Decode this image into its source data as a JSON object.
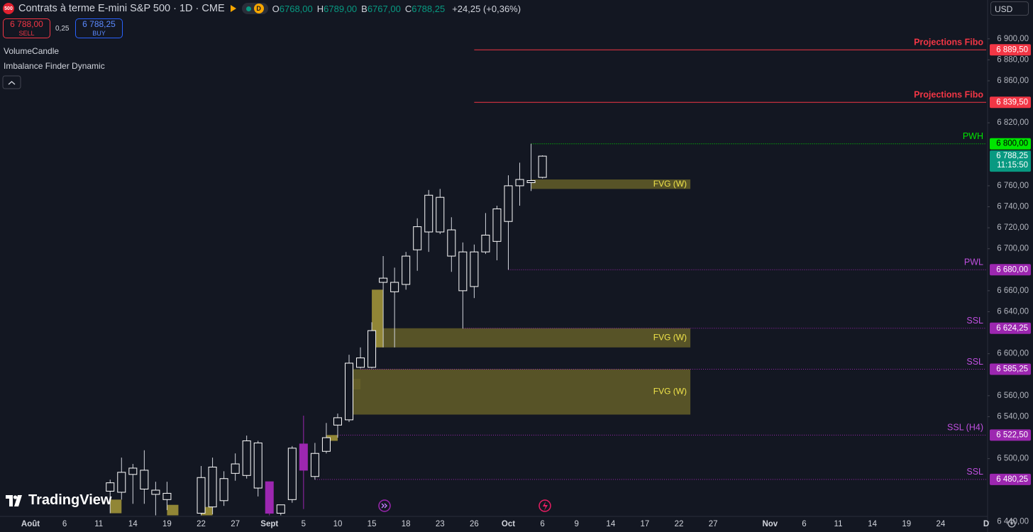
{
  "header": {
    "symbol_icon": "500",
    "title": "Contrats à terme E-mini S&P 500 · 1D · CME",
    "status": "D",
    "ohlc": [
      {
        "key": "O",
        "value": "6768,00"
      },
      {
        "key": "H",
        "value": "6789,00"
      },
      {
        "key": "B",
        "value": "6767,00"
      },
      {
        "key": "C",
        "value": "6788,25"
      }
    ],
    "change": "+24,25 (+0,36%)",
    "currency": "USD"
  },
  "trade": {
    "sell_price": "6 788,00",
    "sell": "SELL",
    "spread": "0,25",
    "buy_price": "6 788,25",
    "buy": "BUY"
  },
  "indicators": [
    "VolumeCandle",
    "Imbalance Finder Dynamic"
  ],
  "watermark": "TradingView",
  "chart_data": {
    "type": "candlestick",
    "categories": [
      "Août",
      null,
      null,
      "6",
      null,
      null,
      "11",
      null,
      null,
      "14",
      null,
      null,
      "19",
      null,
      null,
      "22",
      null,
      null,
      "27",
      null,
      null,
      "Sept",
      null,
      null,
      "5",
      null,
      null,
      "10",
      null,
      null,
      "15",
      null,
      null,
      "18",
      null,
      null,
      "23",
      null,
      null,
      "26",
      null,
      null,
      "Oct",
      null,
      null,
      "6",
      null,
      null,
      "9",
      null,
      null,
      "14",
      null,
      null,
      "17",
      null,
      null,
      "22",
      null,
      null,
      "27",
      null,
      null,
      null,
      null,
      "Nov",
      null,
      null,
      "6",
      null,
      null,
      "11",
      null,
      null,
      "14",
      null,
      null,
      "19",
      null,
      null,
      "24",
      null,
      null,
      null,
      "D"
    ],
    "open": [
      null,
      null,
      null,
      null,
      null,
      null,
      null,
      6469,
      6468,
      6485,
      6489,
      6466,
      6461,
      null,
      null,
      6448,
      6454,
      6460,
      6486,
      6484,
      6515,
      6478,
      6448,
      6461,
      6514,
      6483,
      6507,
      6532,
      6537,
      6596,
      6587,
      6668,
      6659,
      6666,
      6699,
      6716,
      6749,
      6718,
      6697,
      6664,
      6697,
      6707,
      6726,
      6760,
      6763,
      6768,
      null,
      null,
      null,
      null,
      null,
      null,
      null,
      null,
      null,
      null,
      null,
      null,
      null,
      null,
      null,
      null,
      null,
      null,
      null,
      null,
      null,
      null,
      null,
      null,
      null,
      null,
      null,
      null,
      null,
      null,
      null,
      null,
      null,
      null,
      null,
      null,
      null,
      null,
      null
    ],
    "high": [
      null,
      null,
      null,
      null,
      null,
      null,
      null,
      6480,
      6501,
      6495,
      6508,
      6478,
      6478,
      null,
      null,
      6493,
      6501,
      6488,
      6505,
      6522,
      6517,
      6478,
      6456,
      6512,
      6541,
      6515,
      6534,
      6543,
      6599,
      6606,
      6630,
      6693,
      6682,
      6697,
      6729,
      6756,
      6757,
      6730,
      6706,
      6704,
      6734,
      6741,
      6770,
      6782,
      6800,
      6789,
      null,
      null,
      null,
      null,
      null,
      null,
      null,
      null,
      null,
      null,
      null,
      null,
      null,
      null,
      null,
      null,
      null,
      null,
      null,
      null,
      null,
      null,
      null,
      null,
      null,
      null,
      null,
      null,
      null,
      null,
      null,
      null,
      null,
      null,
      null,
      null,
      null,
      null,
      null
    ],
    "low": [
      null,
      null,
      null,
      null,
      null,
      null,
      null,
      6448,
      6461,
      6457,
      6457,
      6446,
      6451,
      null,
      null,
      6446,
      6447,
      6455,
      6479,
      6481,
      6464,
      6446,
      6446,
      6458,
      6452,
      6480,
      6505,
      6520,
      6535,
      6586,
      6586,
      6606,
      6606,
      6661,
      6679,
      6697,
      6714,
      6678,
      6624,
      6653,
      6695,
      6689,
      6680,
      6741,
      6755,
      6767,
      null,
      null,
      null,
      null,
      null,
      null,
      null,
      null,
      null,
      null,
      null,
      null,
      null,
      null,
      null,
      null,
      null,
      null,
      null,
      null,
      null,
      null,
      null,
      null,
      null,
      null,
      null,
      null,
      null,
      null,
      null,
      null,
      null,
      null,
      null,
      null,
      null,
      null,
      null
    ],
    "close": [
      null,
      null,
      null,
      null,
      null,
      null,
      null,
      6477,
      6487,
      6491,
      6471,
      6470,
      6467,
      null,
      null,
      6482,
      6492,
      6481,
      6495,
      6517,
      6472,
      6448,
      6456,
      6510,
      6489,
      6505,
      6520,
      6539,
      6591,
      6587,
      6622,
      6672,
      6668,
      6693,
      6721,
      6751,
      6716,
      6693,
      6660,
      6697,
      6713,
      6738,
      6760,
      6766,
      6765,
      6788.25,
      null,
      null,
      null,
      null,
      null,
      null,
      null,
      null,
      null,
      null,
      null,
      null,
      null,
      null,
      null,
      null,
      null,
      null,
      null,
      null,
      null,
      null,
      null,
      null,
      null,
      null,
      null,
      null,
      null,
      null,
      null,
      null,
      null,
      null,
      null,
      null,
      null,
      null,
      null
    ],
    "body_color": "#131722",
    "border_color": "#ffffff",
    "wick_color": "#d1d4dc",
    "volume_candles": [
      21,
      24
    ],
    "volume_color": "#9c27b0",
    "ylim": [
      6445,
      6937
    ],
    "yticks": [
      {
        "value": 6900,
        "label": "6 900,00"
      },
      {
        "value": 6880,
        "label": "6 880,00"
      },
      {
        "value": 6860,
        "label": "6 860,00"
      },
      {
        "value": 6820,
        "label": "6 820,00"
      },
      {
        "value": 6760,
        "label": "6 760,00"
      },
      {
        "value": 6740,
        "label": "6 740,00"
      },
      {
        "value": 6720,
        "label": "6 720,00"
      },
      {
        "value": 6700,
        "label": "6 700,00"
      },
      {
        "value": 6660,
        "label": "6 660,00"
      },
      {
        "value": 6640,
        "label": "6 640,00"
      },
      {
        "value": 6600,
        "label": "6 600,00"
      },
      {
        "value": 6560,
        "label": "6 560,00"
      },
      {
        "value": 6540,
        "label": "6 540,00"
      },
      {
        "value": 6500,
        "label": "6 500,00"
      },
      {
        "value": 6440,
        "label": "6 440,00"
      }
    ],
    "fvg_color": "#5f5a28",
    "fvg_text_color": "#f0e44a",
    "fvg": [
      {
        "label": "FVG (W)",
        "top": 6766,
        "bottom": 6757,
        "start": 44,
        "end": 58
      },
      {
        "label": "FVG (W)",
        "top": 6624.25,
        "bottom": 6606,
        "start": 31,
        "end": 58
      },
      {
        "label": "FVG (W)",
        "top": 6585.25,
        "bottom": 6542,
        "start": 28,
        "end": 58
      }
    ],
    "imbalance_color": "#a89a3a",
    "imbalances": [
      {
        "top": 6461,
        "bottom": 6448,
        "start": 7,
        "end": 8
      },
      {
        "top": 6456,
        "bottom": 6446,
        "start": 12,
        "end": 13
      },
      {
        "top": 6454,
        "bottom": 6446,
        "start": 15,
        "end": 16
      },
      {
        "top": 6522.5,
        "bottom": 6517,
        "start": 26,
        "end": 27
      },
      {
        "top": 6576,
        "bottom": 6566,
        "start": 28,
        "end": 29
      },
      {
        "top": 6661,
        "bottom": 6606,
        "start": 30,
        "end": 31
      }
    ],
    "levels": [
      {
        "label": "Projections Fibo",
        "value": 6889.5,
        "value_label": "6 889,50",
        "color": "#f23645",
        "text_color": "#ffffff",
        "style": "solid",
        "start": 39
      },
      {
        "label": "Projections Fibo",
        "value": 6839.5,
        "value_label": "6 839,50",
        "color": "#f23645",
        "text_color": "#ffffff",
        "style": "solid",
        "start": 39
      },
      {
        "label": "PWH",
        "value": 6800,
        "value_label": "6 800,00",
        "color": "#00e600",
        "text_color": "#000000",
        "style": "dotted",
        "start": 44
      },
      {
        "label": "PWL",
        "value": 6680,
        "value_label": "6 680,00",
        "color": "#9c27b0",
        "text_color": "#ffffff",
        "style": "dotted",
        "start": 42
      },
      {
        "label": "SSL",
        "value": 6624.25,
        "value_label": "6 624,25",
        "color": "#9c27b0",
        "text_color": "#ffffff",
        "style": "dotted",
        "start": 38
      },
      {
        "label": "SSL",
        "value": 6585.25,
        "value_label": "6 585,25",
        "color": "#9c27b0",
        "text_color": "#ffffff",
        "style": "dotted",
        "start": 29
      },
      {
        "label": "SSL (H4)",
        "value": 6522.5,
        "value_label": "6 522,50",
        "color": "#9c27b0",
        "text_color": "#ffffff",
        "style": "dotted",
        "start": 27
      },
      {
        "label": "SSL",
        "value": 6480.25,
        "value_label": "6 480,25",
        "color": "#9c27b0",
        "text_color": "#ffffff",
        "style": "dotted",
        "start": 25
      }
    ],
    "last_price": {
      "value": 6788.25,
      "label": "6 788,25",
      "timer": "11:15:50",
      "color": "#089981"
    }
  }
}
